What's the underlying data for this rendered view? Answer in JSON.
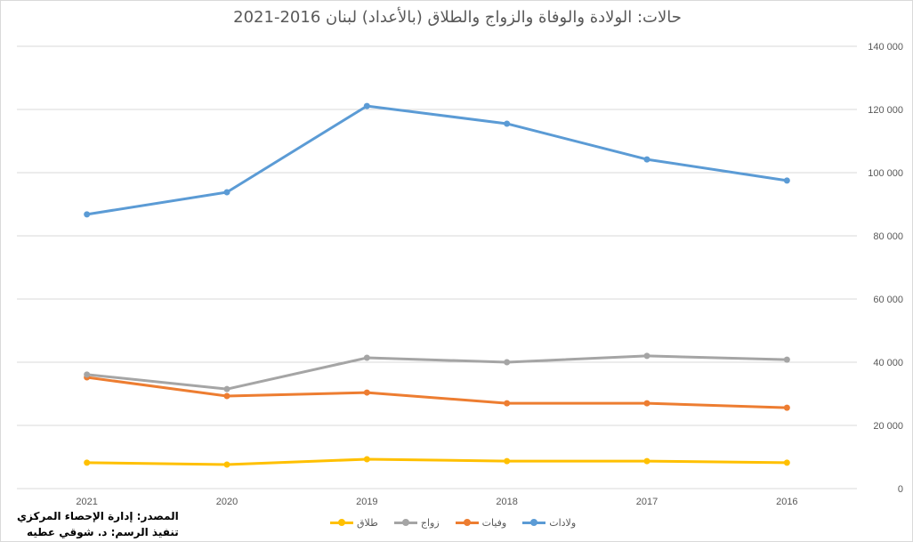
{
  "chart_data": {
    "type": "line",
    "title": "حالات: الولادة والوفاة والزواج والطلاق (بالأعداد) لبنان 2016-2021",
    "categories": [
      "2021",
      "2020",
      "2019",
      "2018",
      "2017",
      "2016"
    ],
    "ylim": [
      0,
      140000
    ],
    "yticks": [
      "0",
      "20 000",
      "40 000",
      "60 000",
      "80 000",
      "100 000",
      "120 000",
      "140 000"
    ],
    "grid": true,
    "legend_position": "bottom",
    "series": [
      {
        "name": "ولادات",
        "color": "#5b9bd5",
        "values": [
          86800,
          93800,
          121100,
          115500,
          104200,
          97500
        ]
      },
      {
        "name": "وفيات",
        "color": "#ed7d31",
        "values": [
          35200,
          29300,
          30400,
          27000,
          27000,
          25600
        ]
      },
      {
        "name": "زواج",
        "color": "#a5a5a5",
        "values": [
          36100,
          31500,
          41400,
          40000,
          42000,
          40800
        ]
      },
      {
        "name": "طلاق",
        "color": "#ffc000",
        "values": [
          8200,
          7600,
          9300,
          8700,
          8700,
          8200
        ]
      }
    ]
  },
  "source": {
    "line1": "المصدر: إدارة الإحصاء المركزي",
    "line2": "تنفيذ الرسم: د. شوقي عطيه"
  }
}
